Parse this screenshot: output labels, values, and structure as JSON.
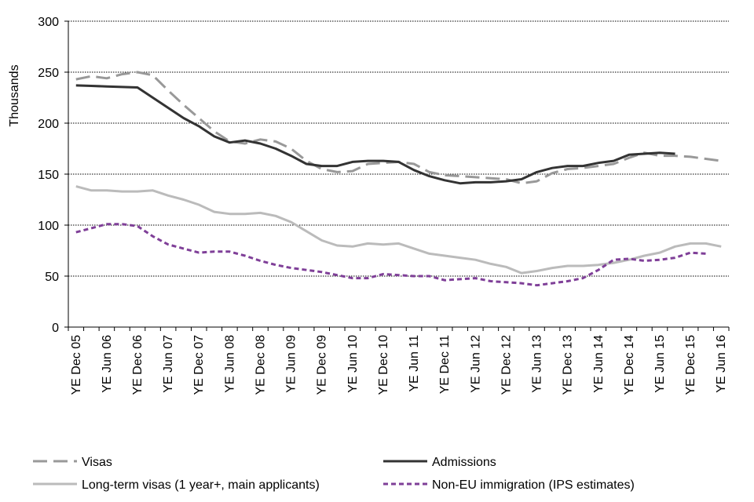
{
  "chart_data": {
    "type": "line",
    "ylabel": "Thousands",
    "ylim": [
      0,
      300
    ],
    "yticks": [
      0,
      50,
      100,
      150,
      200,
      250,
      300
    ],
    "grid": "horizontal",
    "legend_position": "bottom",
    "x": [
      "YE Dec 05",
      "YE Mar 06",
      "YE Jun 06",
      "YE Sep 06",
      "YE Dec 06",
      "YE Mar 07",
      "YE Jun 07",
      "YE Sep 07",
      "YE Dec 07",
      "YE Mar 08",
      "YE Jun 08",
      "YE Sep 08",
      "YE Dec 08",
      "YE Mar 09",
      "YE Jun 09",
      "YE Sep 09",
      "YE Dec 09",
      "YE Mar 10",
      "YE Jun 10",
      "YE Sep 10",
      "YE Dec 10",
      "YE Mar 11",
      "YE Jun 11",
      "YE Sep 11",
      "YE Dec 11",
      "YE Mar 12",
      "YE Jun 12",
      "YE Sep 12",
      "YE Dec 12",
      "YE Mar 13",
      "YE Jun 13",
      "YE Sep 13",
      "YE Dec 13",
      "YE Mar 14",
      "YE Jun 14",
      "YE Sep 14",
      "YE Dec 14",
      "YE Mar 15",
      "YE Jun 15",
      "YE Sep 15",
      "YE Dec 15",
      "YE Mar 16",
      "YE Jun 16"
    ],
    "xtick_labels": [
      "YE Dec 05",
      "YE Jun 06",
      "YE Dec 06",
      "YE Jun 07",
      "YE Dec 07",
      "YE Jun 08",
      "YE Dec 08",
      "YE Jun 09",
      "YE Dec 09",
      "YE Jun 10",
      "YE Dec 10",
      "YE Jun 11",
      "YE Dec 11",
      "YE Jun 12",
      "YE Dec 12",
      "YE Jun 13",
      "YE Dec 13",
      "YE Jun 14",
      "YE Dec 14",
      "YE Jun 15",
      "YE Dec 15",
      "YE Jun 16"
    ],
    "series": [
      {
        "name": "Visas",
        "color": "#999999",
        "style": "long-dash",
        "values": [
          243,
          246,
          244,
          248,
          250,
          247,
          232,
          218,
          205,
          192,
          182,
          180,
          184,
          182,
          175,
          163,
          155,
          152,
          153,
          160,
          161,
          162,
          160,
          152,
          149,
          148,
          147,
          146,
          145,
          141,
          143,
          151,
          155,
          156,
          158,
          160,
          166,
          171,
          168,
          168,
          167,
          165,
          163
        ]
      },
      {
        "name": "Admissions",
        "color": "#333333",
        "style": "solid",
        "values": [
          237,
          236.5,
          236,
          235.5,
          235,
          225,
          215,
          205,
          197,
          187,
          181,
          183,
          180,
          175,
          168,
          160,
          158,
          158,
          162,
          163,
          163,
          162,
          154,
          148,
          144,
          141,
          142,
          142,
          143,
          145,
          152,
          156,
          158,
          158,
          161,
          163,
          169,
          170,
          171,
          170,
          null,
          null,
          null
        ]
      },
      {
        "name": "Long-term visas (1 year+, main applicants)",
        "color": "#bbbbbb",
        "style": "solid",
        "values": [
          138,
          134,
          134,
          133,
          133,
          134,
          129,
          125,
          120,
          113,
          111,
          111,
          112,
          109,
          103,
          94,
          85,
          80,
          79,
          82,
          81,
          82,
          77,
          72,
          70,
          68,
          66,
          62,
          59,
          53,
          55,
          58,
          60,
          60,
          61,
          63,
          66,
          70,
          73,
          79,
          82,
          82,
          79
        ]
      },
      {
        "name": "Non-EU immigration (IPS estimates)",
        "color": "#7f3f98",
        "style": "short-dash",
        "values": [
          93,
          97,
          101,
          101,
          99,
          89,
          81,
          77,
          73,
          74,
          74,
          70,
          65,
          61,
          58,
          56,
          54,
          51,
          48,
          48,
          52,
          51,
          50,
          50,
          46,
          47,
          48,
          45,
          44,
          43,
          41,
          43,
          45,
          48,
          56,
          66,
          67,
          65,
          66,
          68,
          73,
          72,
          null
        ]
      }
    ]
  }
}
